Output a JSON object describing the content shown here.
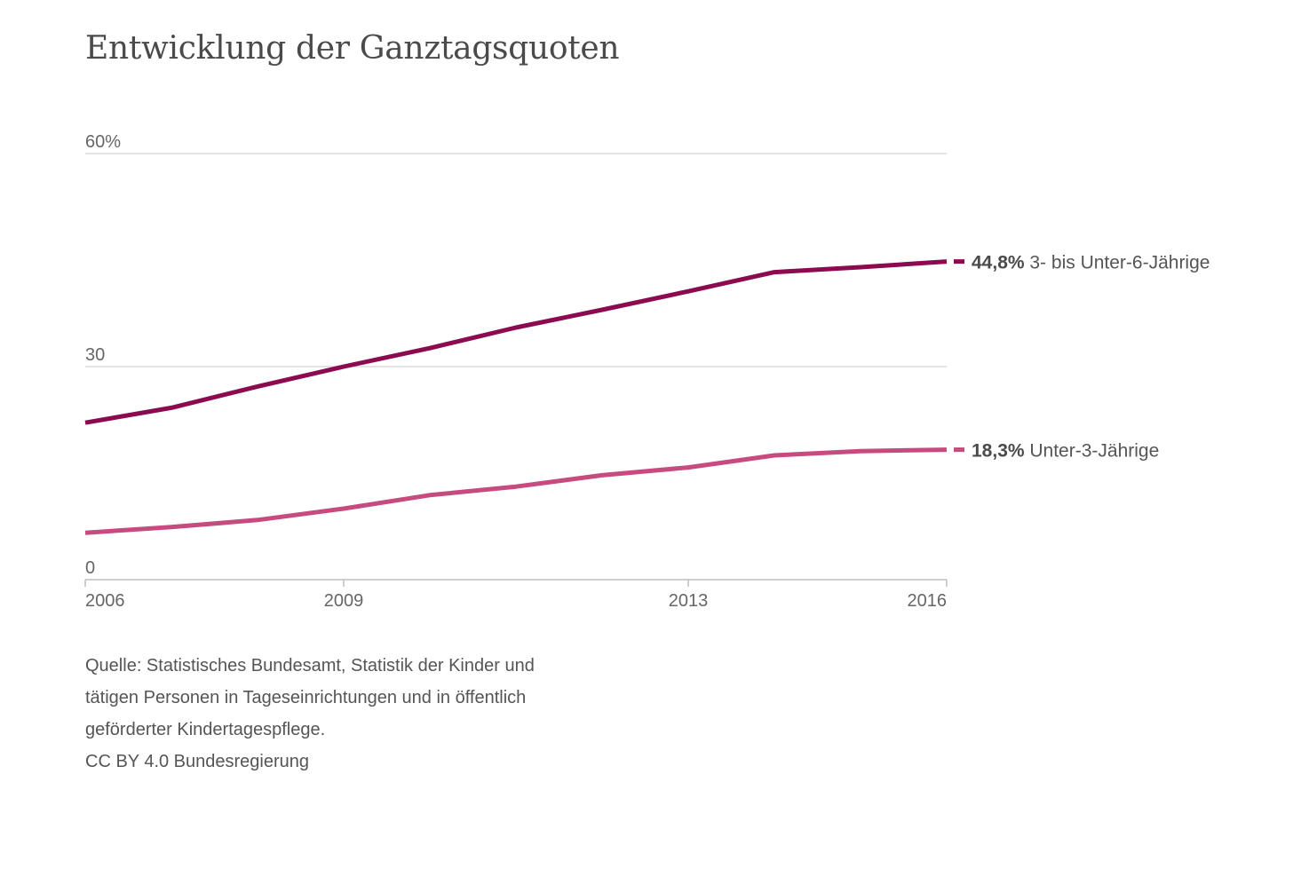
{
  "title": "Entwicklung der Ganztagsquoten",
  "source": {
    "lines": [
      "Quelle: Statistisches Bundesamt, Statistik der Kinder und",
      "tätigen Personen in Tageseinrichtungen und in öffentlich",
      "geförderter Kindertagespflege.",
      "CC BY 4.0 Bundesregierung"
    ]
  },
  "chart_data": {
    "type": "line",
    "title": "Entwicklung der Ganztagsquoten",
    "xlabel": "",
    "ylabel": "",
    "xlim": [
      2006,
      2016
    ],
    "ylim": [
      0,
      60
    ],
    "y_ticks": [
      {
        "value": 0,
        "label": "0"
      },
      {
        "value": 30,
        "label": "30"
      },
      {
        "value": 60,
        "label": "60%"
      }
    ],
    "x_ticks": [
      {
        "value": 2006,
        "label": "2006"
      },
      {
        "value": 2009,
        "label": "2009"
      },
      {
        "value": 2013,
        "label": "2013"
      },
      {
        "value": 2016,
        "label": "2016"
      }
    ],
    "grid": true,
    "x": [
      2006,
      2007,
      2008,
      2009,
      2010,
      2011,
      2012,
      2013,
      2014,
      2015,
      2016
    ],
    "series": [
      {
        "name": "3- bis Unter-6-Jährige",
        "value_label": "44,8%",
        "color": "#8b0a50",
        "values": [
          22.1,
          24.2,
          27.2,
          30.0,
          32.6,
          35.5,
          38.0,
          40.6,
          43.3,
          44.0,
          44.8
        ]
      },
      {
        "name": "Unter-3-Jährige",
        "value_label": "18,3%",
        "color": "#c84b80",
        "values": [
          6.6,
          7.4,
          8.4,
          10.0,
          11.9,
          13.1,
          14.7,
          15.8,
          17.5,
          18.1,
          18.3
        ]
      }
    ]
  }
}
